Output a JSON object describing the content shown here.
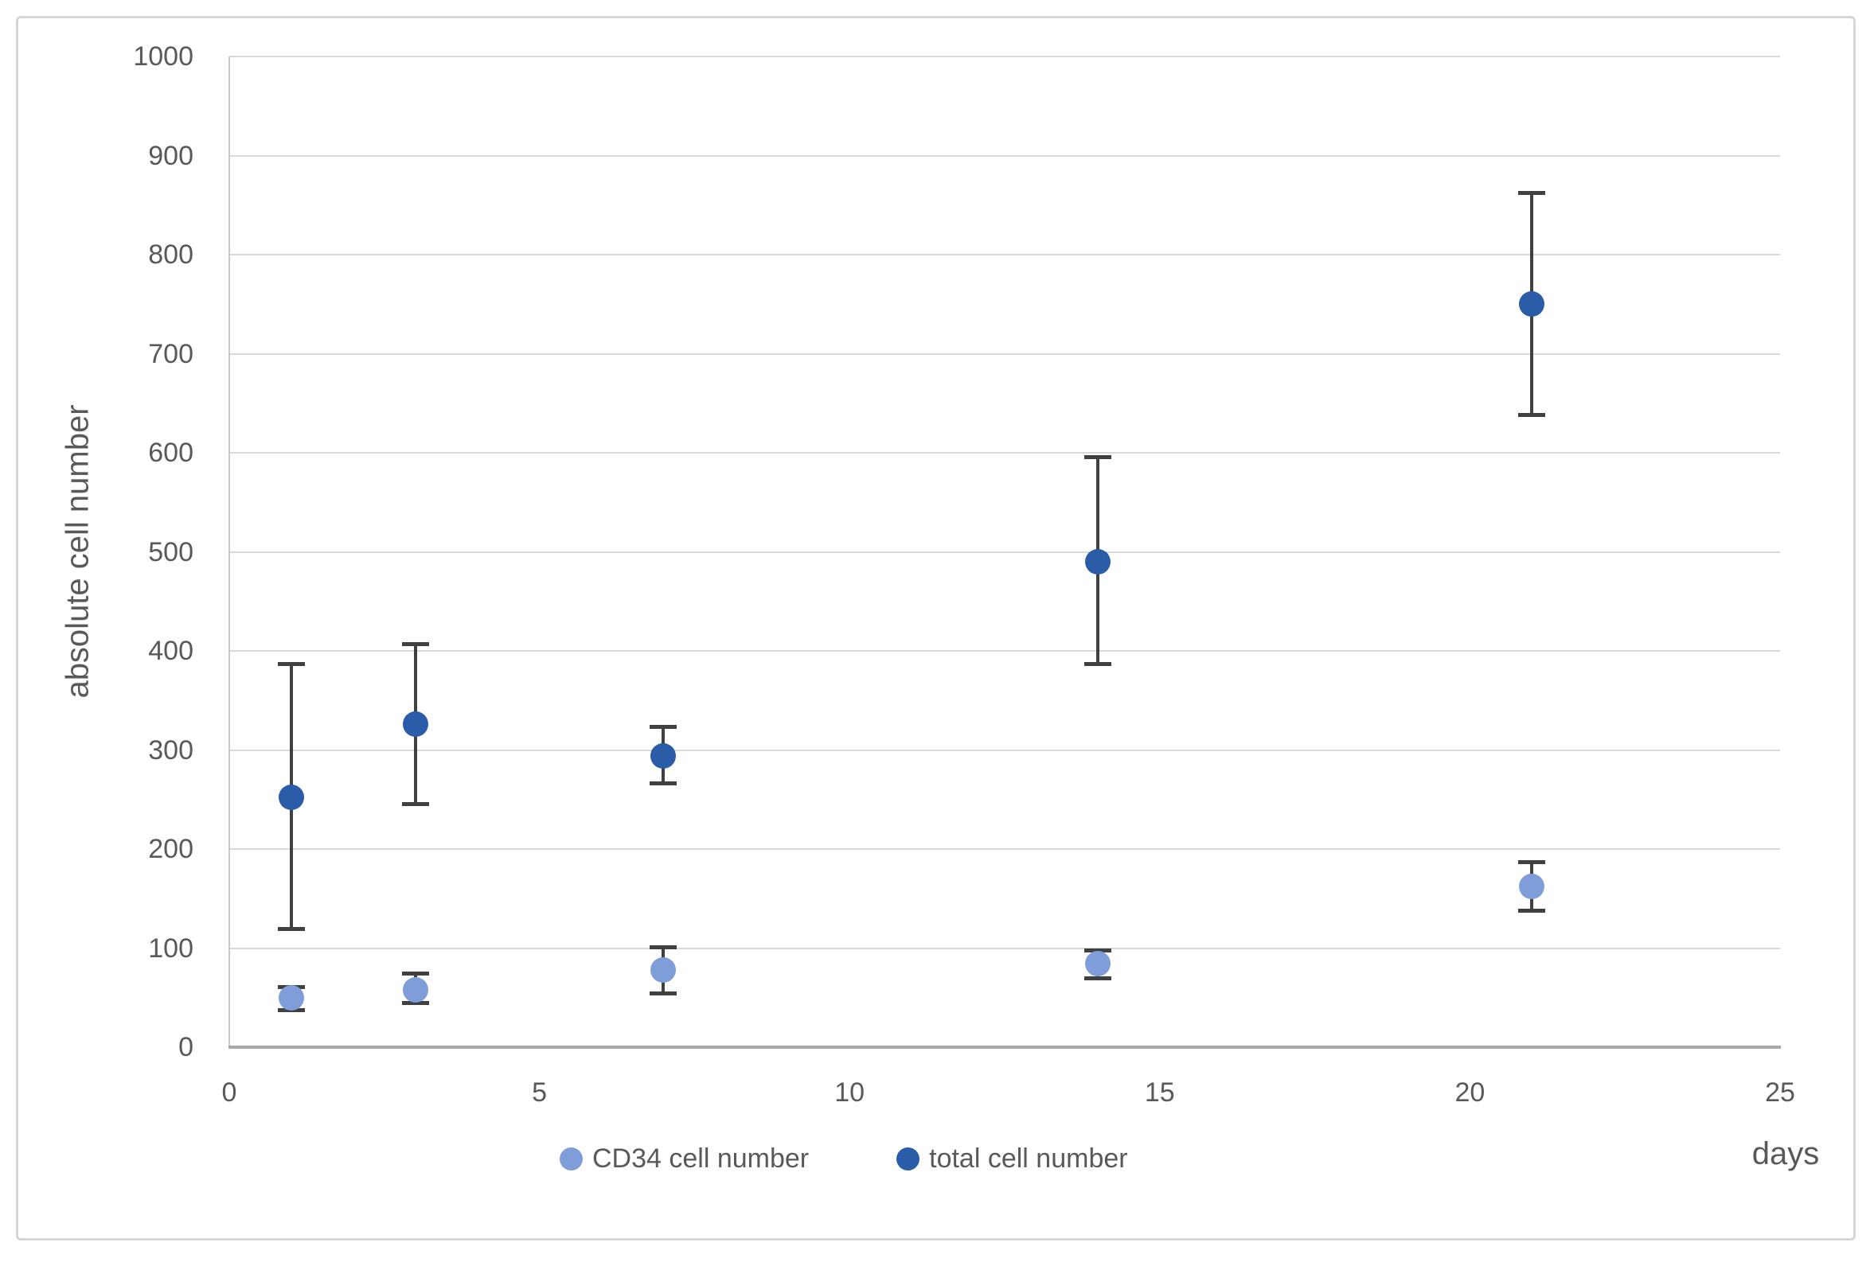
{
  "chart_data": {
    "type": "scatter",
    "title": "",
    "xlabel": "days",
    "ylabel": "absolute cell number",
    "xlim": [
      0,
      25
    ],
    "ylim": [
      0,
      1000
    ],
    "x_ticks": [
      0,
      5,
      10,
      15,
      20,
      25
    ],
    "y_ticks": [
      0,
      100,
      200,
      300,
      400,
      500,
      600,
      700,
      800,
      900,
      1000
    ],
    "grid": "horizontal-on",
    "legend_position": "bottom-center",
    "error_bar_color": "#404040",
    "series": [
      {
        "name": "CD34 cell number",
        "color": "#7f9dd8",
        "x": [
          1,
          3,
          7,
          14,
          21
        ],
        "y": [
          50,
          58,
          78,
          84,
          162
        ],
        "y_err_low": [
          37,
          44,
          54,
          69,
          137
        ],
        "y_err_high": [
          61,
          75,
          101,
          98,
          187
        ]
      },
      {
        "name": "total cell number",
        "color": "#2a5ca8",
        "x": [
          1,
          3,
          7,
          14,
          21
        ],
        "y": [
          252,
          326,
          294,
          490,
          750
        ],
        "y_err_low": [
          119,
          245,
          266,
          386,
          638
        ],
        "y_err_high": [
          387,
          407,
          324,
          596,
          863
        ]
      }
    ]
  },
  "axes": {
    "ylabel": "absolute cell number",
    "xlabel": "days",
    "y_tick_labels": [
      "0",
      "100",
      "200",
      "300",
      "400",
      "500",
      "600",
      "700",
      "800",
      "900",
      "1000"
    ],
    "x_tick_labels": [
      "0",
      "5",
      "10",
      "15",
      "20",
      "25"
    ]
  },
  "legend": {
    "items": [
      {
        "label": "CD34 cell number",
        "color": "#7f9dd8"
      },
      {
        "label": "total cell number",
        "color": "#2a5ca8"
      }
    ]
  }
}
